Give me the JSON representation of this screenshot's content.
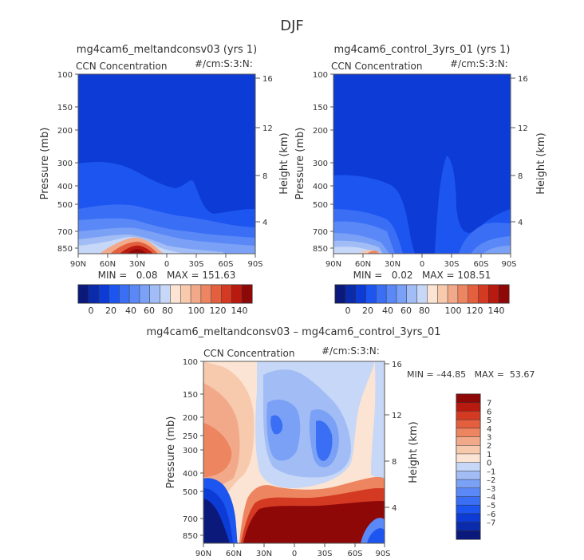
{
  "title": "DJF",
  "colors": {
    "neg": [
      "#0b1a7a",
      "#0a2bab",
      "#0c3bd6",
      "#1d55f0",
      "#3a6ff5",
      "#5a88f7",
      "#7ba1f6",
      "#a2bdf5",
      "#c6d7f7"
    ],
    "zero": "#fbe4d3",
    "pos": [
      "#f7c9ad",
      "#f2a98a",
      "#ec8560",
      "#e45f3e",
      "#d43a22",
      "#b81a10",
      "#8f0808"
    ]
  },
  "chart_data": [
    {
      "type": "contour",
      "title": "mg4cam6_meltandconsv03 (yrs 1)",
      "field_label": "CCN Concentration",
      "units": "#/cm:S:3:N:",
      "ylabel": "Pressure (mb)",
      "ylabel_right": "Height (km)",
      "x_ticks": [
        "90N",
        "60N",
        "30N",
        "0",
        "30S",
        "60S",
        "90S"
      ],
      "y_ticks": [
        "100",
        "150",
        "200",
        "300",
        "400",
        "500",
        "700",
        "850"
      ],
      "y_right_ticks": [
        "16",
        "12",
        "8",
        "4"
      ],
      "stats": "MIN =   0.08   MAX = 151.63",
      "colorbar_ticks": [
        "0",
        "20",
        "40",
        "60",
        "80",
        "100",
        "120",
        "140"
      ]
    },
    {
      "type": "contour",
      "title": "mg4cam6_control_3yrs_01 (yrs 1)",
      "field_label": "CCN Concentration",
      "units": "#/cm:S:3:N:",
      "ylabel": "Pressure (mb)",
      "ylabel_right": "Height (km)",
      "x_ticks": [
        "90N",
        "60N",
        "30N",
        "0",
        "30S",
        "60S",
        "90S"
      ],
      "y_ticks": [
        "100",
        "150",
        "200",
        "300",
        "400",
        "500",
        "700",
        "850"
      ],
      "y_right_ticks": [
        "16",
        "12",
        "8",
        "4"
      ],
      "stats": "MIN =   0.02   MAX = 108.51",
      "colorbar_ticks": [
        "0",
        "20",
        "40",
        "60",
        "80",
        "100",
        "120",
        "140"
      ]
    },
    {
      "type": "contour",
      "title": "mg4cam6_meltandconsv03 – mg4cam6_control_3yrs_01",
      "field_label": "CCN Concentration",
      "units": "#/cm:S:3:N:",
      "ylabel": "Pressure (mb)",
      "ylabel_right": "Height (km)",
      "x_ticks": [
        "90N",
        "60N",
        "30N",
        "0",
        "30S",
        "60S",
        "90S"
      ],
      "y_ticks": [
        "100",
        "150",
        "200",
        "250",
        "300",
        "400",
        "500",
        "700",
        "850"
      ],
      "y_right_ticks": [
        "16",
        "12",
        "8",
        "4"
      ],
      "stats": "MIN = –44.85   MAX =  53.67",
      "colorbar_ticks": [
        "7",
        "6",
        "5",
        "4",
        "3",
        "2",
        "1",
        "0",
        "–1",
        "–2",
        "–3",
        "–4",
        "–5",
        "–6",
        "–7"
      ]
    }
  ]
}
